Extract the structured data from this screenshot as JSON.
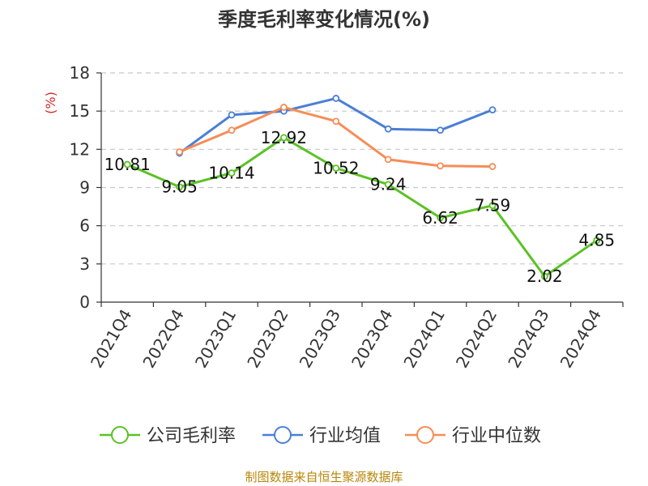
{
  "chart_data": {
    "type": "line",
    "title": "季度毛利率变化情况(%)",
    "ylabel": "(%)",
    "xlabel": "",
    "ylim": [
      0,
      18
    ],
    "yticks": [
      0,
      3,
      6,
      9,
      12,
      15,
      18
    ],
    "grid": true,
    "legend_position": "bottom",
    "categories": [
      "2021Q4",
      "2022Q4",
      "2023Q1",
      "2023Q2",
      "2023Q3",
      "2023Q4",
      "2024Q1",
      "2024Q2",
      "2024Q3",
      "2024Q4"
    ],
    "series": [
      {
        "name": "公司毛利率",
        "color": "#5bc225",
        "values": [
          10.81,
          9.05,
          10.14,
          12.92,
          10.52,
          9.24,
          6.62,
          7.59,
          2.02,
          4.85
        ],
        "labels": [
          "10.81",
          "9.05",
          "10.14",
          "12.92",
          "10.52",
          "9.24",
          "6.62",
          "7.59",
          "2.02",
          "4.85"
        ]
      },
      {
        "name": "行业均值",
        "color": "#4a7fd6",
        "values": [
          null,
          11.7,
          14.7,
          15.0,
          16.0,
          13.6,
          13.5,
          15.1,
          null,
          null
        ]
      },
      {
        "name": "行业中位数",
        "color": "#f58d57",
        "values": [
          null,
          11.8,
          13.5,
          15.3,
          14.2,
          11.2,
          10.7,
          10.65,
          null,
          null
        ]
      }
    ]
  },
  "source": "制图数据来自恒生聚源数据库"
}
